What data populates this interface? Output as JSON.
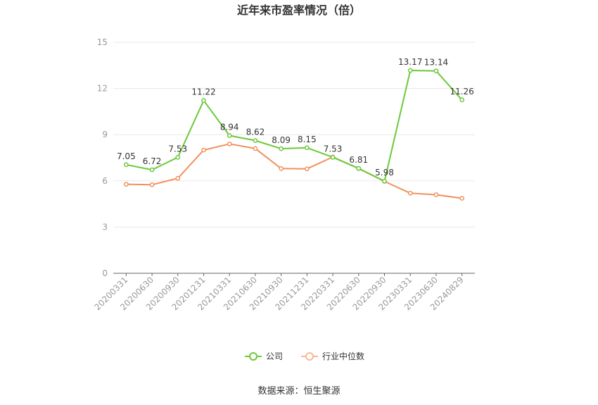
{
  "chart_data": {
    "type": "line",
    "title": "近年来市盈率情况（倍）",
    "categories": [
      "20200331",
      "20200630",
      "20200930",
      "20201231",
      "20210331",
      "20210630",
      "20210930",
      "20211231",
      "20220331",
      "20220630",
      "20220930",
      "20230331",
      "20230630",
      "20240829"
    ],
    "series": [
      {
        "name": "公司",
        "color": "#6cc93b",
        "values": [
          7.05,
          6.72,
          7.53,
          11.22,
          8.94,
          8.62,
          8.09,
          8.15,
          7.53,
          6.81,
          5.98,
          13.17,
          13.14,
          11.26
        ],
        "labels": [
          "7.05",
          "6.72",
          "7.53",
          "11.22",
          "8.94",
          "8.62",
          "8.09",
          "8.15",
          "7.53",
          "6.81",
          "5.98",
          "13.17",
          "13.14",
          "11.26"
        ]
      },
      {
        "name": "行业中位数",
        "color": "#f0915e",
        "values": [
          5.78,
          5.75,
          6.17,
          8.0,
          8.4,
          8.1,
          6.8,
          6.78,
          7.55,
          6.8,
          5.97,
          5.2,
          5.1,
          4.87
        ]
      }
    ],
    "ylim": [
      0,
      15
    ],
    "yticks": [
      "0",
      "3",
      "6",
      "9",
      "12",
      "15"
    ],
    "grid": true,
    "legend": "bottom-center",
    "source": "数据来源：恒生聚源"
  }
}
